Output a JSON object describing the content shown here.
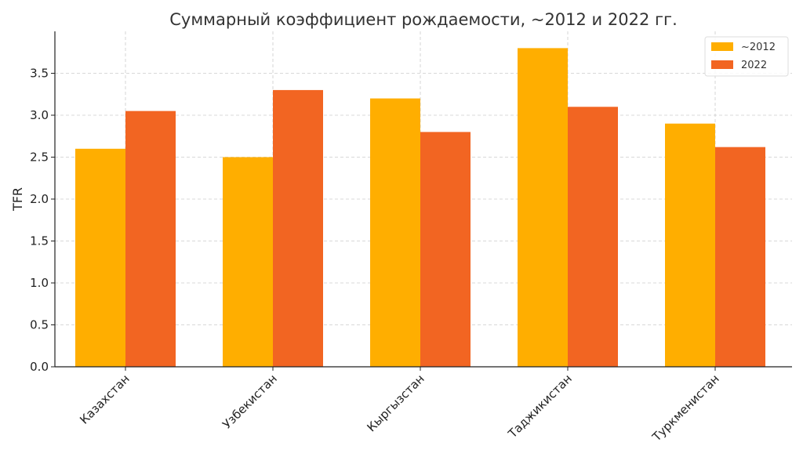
{
  "chart_data": {
    "type": "bar",
    "title": "Суммарный коэффициент рождаемости, ~2012 и 2022 гг.",
    "xlabel": "",
    "ylabel": "TFR",
    "categories": [
      "Казахстан",
      "Узбекистан",
      "Кыргызстан",
      "Таджикистан",
      "Туркменистан"
    ],
    "series": [
      {
        "name": "~2012",
        "values": [
          2.6,
          2.5,
          3.2,
          3.8,
          2.9
        ],
        "color": "#FFAE00"
      },
      {
        "name": "2022",
        "values": [
          3.05,
          3.3,
          2.8,
          3.1,
          2.62
        ],
        "color": "#F26522"
      }
    ],
    "ylim": [
      0,
      4.0
    ],
    "yticks": [
      "0.0",
      "0.5",
      "1.0",
      "1.5",
      "2.0",
      "2.5",
      "3.0",
      "3.5"
    ],
    "grid": true,
    "legend": "top-right"
  }
}
